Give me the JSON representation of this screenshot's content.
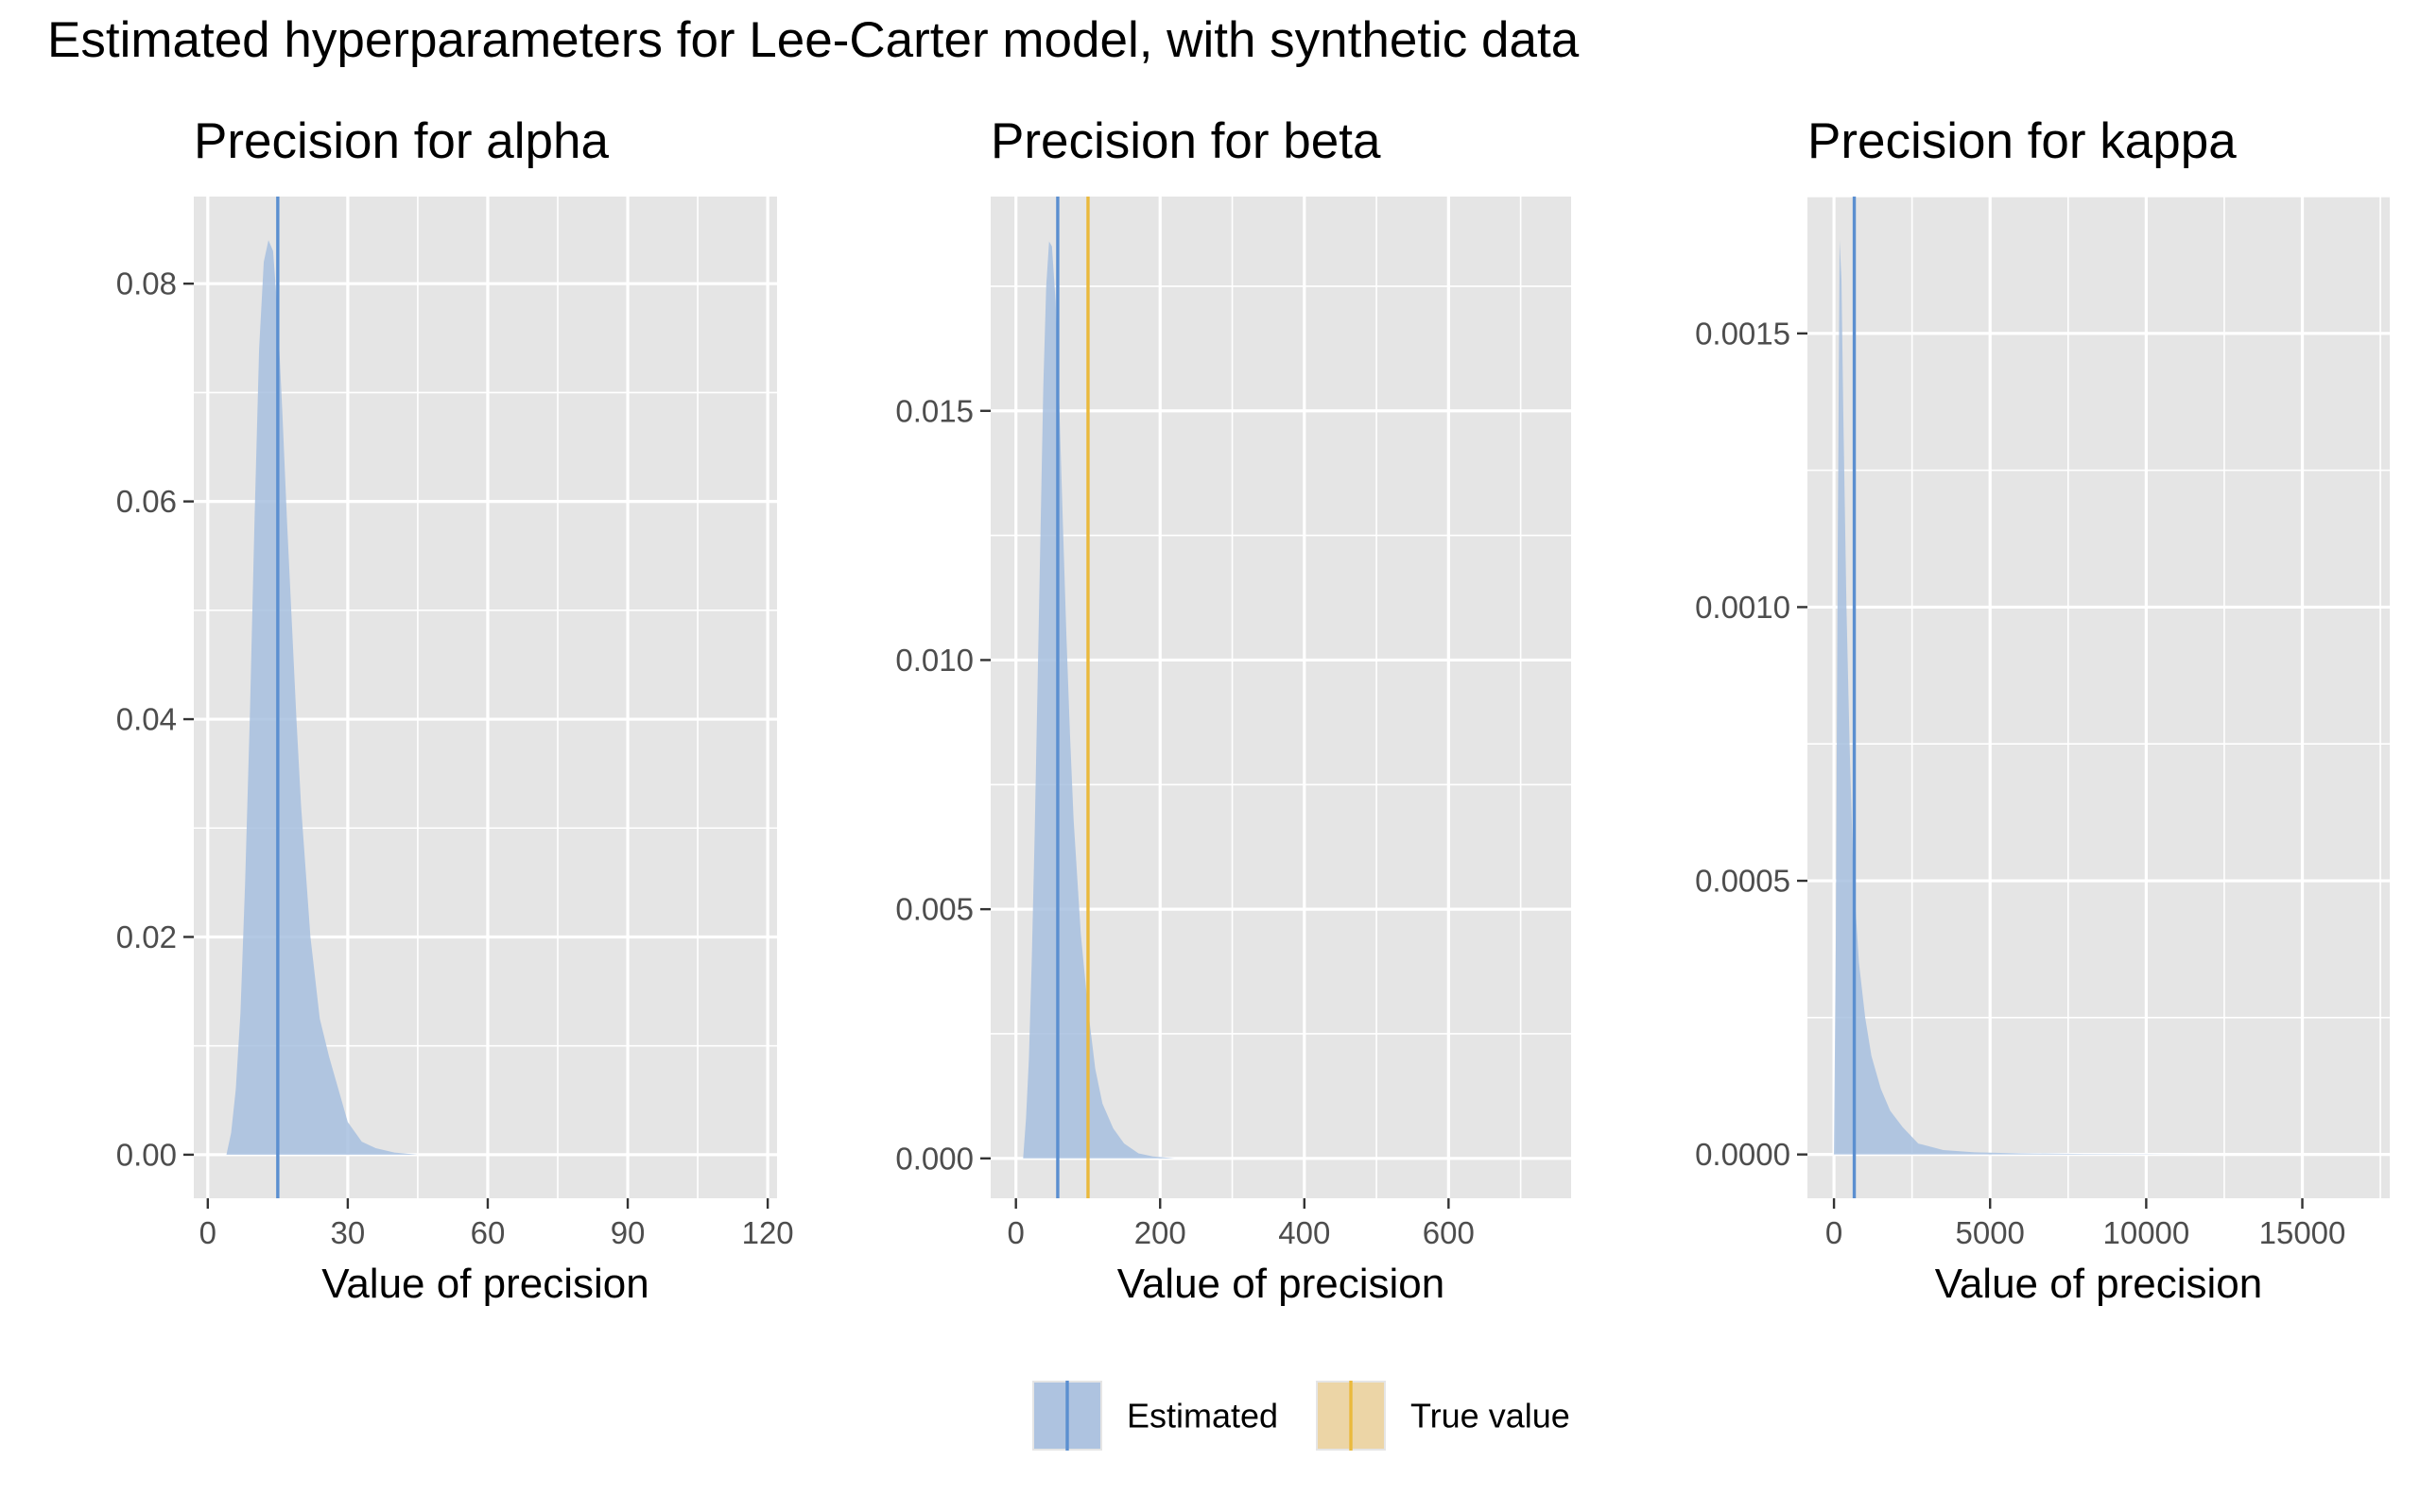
{
  "figure": {
    "title": "Estimated hyperparameters for Lee-Carter model, with synthetic data"
  },
  "colors": {
    "panel_background": "#e5e5e5",
    "grid": "#ffffff",
    "estimated_fill": "#a7bfdf",
    "estimated_line": "#5b8fd0",
    "true_fill": "#ecd39f",
    "true_line": "#eab93c",
    "tick_text": "#4d4d4d",
    "text": "#000000"
  },
  "legend": {
    "position": "bottom",
    "items": [
      {
        "label": "Estimated",
        "key": "estimated"
      },
      {
        "label": "True value",
        "key": "true"
      }
    ]
  },
  "chart_data": [
    {
      "type": "area",
      "title": "Precision for alpha",
      "xlabel": "Value of precision",
      "ylabel": "",
      "xlim": [
        -3,
        122
      ],
      "ylim": [
        -0.004,
        0.088
      ],
      "x_ticks": [
        0,
        30,
        60,
        90,
        120
      ],
      "x_tick_labels": [
        "0",
        "30",
        "60",
        "90",
        "120"
      ],
      "y_ticks": [
        0.0,
        0.02,
        0.04,
        0.06,
        0.08
      ],
      "y_tick_labels": [
        "0.00",
        "0.02",
        "0.04",
        "0.06",
        "0.08"
      ],
      "grid": true,
      "series": [
        {
          "key": "estimated",
          "x": [
            4,
            5,
            6,
            7,
            8,
            9,
            10,
            11,
            12,
            13,
            14,
            15,
            16,
            17,
            18,
            19,
            20,
            22,
            24,
            26,
            28,
            30,
            33,
            36,
            40,
            45
          ],
          "y": [
            0.0,
            0.002,
            0.006,
            0.013,
            0.025,
            0.04,
            0.058,
            0.074,
            0.082,
            0.084,
            0.083,
            0.077,
            0.068,
            0.058,
            0.049,
            0.04,
            0.032,
            0.02,
            0.0125,
            0.009,
            0.006,
            0.003,
            0.0012,
            0.0006,
            0.0002,
            0.0
          ]
        }
      ],
      "vlines": [
        {
          "key": "estimated",
          "x": 15
        }
      ]
    },
    {
      "type": "area",
      "title": "Precision for beta",
      "xlabel": "Value of precision",
      "ylabel": "",
      "xlim": [
        -35,
        770
      ],
      "ylim": [
        -0.0008,
        0.0193
      ],
      "x_ticks": [
        0,
        200,
        400,
        600
      ],
      "x_tick_labels": [
        "0",
        "200",
        "400",
        "600"
      ],
      "y_ticks": [
        0.0,
        0.005,
        0.01,
        0.015
      ],
      "y_tick_labels": [
        "0.000",
        "0.005",
        "0.010",
        "0.015"
      ],
      "grid": true,
      "series": [
        {
          "key": "estimated",
          "x": [
            10,
            14,
            18,
            22,
            26,
            30,
            34,
            38,
            42,
            46,
            50,
            55,
            60,
            65,
            70,
            75,
            80,
            90,
            100,
            110,
            120,
            135,
            150,
            170,
            190,
            220
          ],
          "y": [
            0.0,
            0.0008,
            0.002,
            0.004,
            0.0065,
            0.0095,
            0.0125,
            0.0155,
            0.0175,
            0.0184,
            0.0183,
            0.0172,
            0.0152,
            0.0128,
            0.0105,
            0.0085,
            0.0068,
            0.0045,
            0.003,
            0.0018,
            0.0011,
            0.0006,
            0.0003,
            0.0001,
            4e-05,
            0.0
          ]
        }
      ],
      "vlines": [
        {
          "key": "estimated",
          "x": 58
        },
        {
          "key": "true",
          "x": 100
        }
      ]
    },
    {
      "type": "area",
      "title": "Precision for kappa",
      "xlabel": "Value of precision",
      "ylabel": "",
      "xlim": [
        -850,
        17800
      ],
      "ylim": [
        -8e-05,
        0.00175
      ],
      "x_ticks": [
        0,
        5000,
        10000,
        15000
      ],
      "x_tick_labels": [
        "0",
        "5000",
        "10000",
        "15000"
      ],
      "y_ticks": [
        0.0,
        0.0005,
        0.001,
        0.0015
      ],
      "y_tick_labels": [
        "0.0000",
        "0.0005",
        "0.0010",
        "0.0015"
      ],
      "grid": true,
      "series": [
        {
          "key": "estimated",
          "x": [
            0,
            60,
            120,
            180,
            240,
            300,
            400,
            500,
            600,
            700,
            800,
            1000,
            1200,
            1500,
            1800,
            2200,
            2700,
            3500,
            4500,
            6000,
            8000,
            10000,
            12000
          ],
          "y": [
            0.0,
            0.0004,
            0.0011,
            0.00167,
            0.0016,
            0.00135,
            0.001,
            0.00075,
            0.00055,
            0.00044,
            0.00035,
            0.00025,
            0.00018,
            0.00012,
            8e-05,
            5e-05,
            2e-05,
            8e-06,
            4e-06,
            2e-06,
            1e-06,
            5e-07,
            0.0
          ]
        }
      ],
      "vlines": [
        {
          "key": "estimated",
          "x": 650
        }
      ]
    }
  ]
}
